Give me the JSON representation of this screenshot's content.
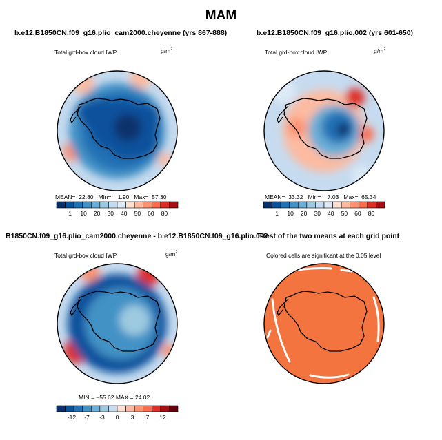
{
  "main_title": "MAM",
  "panels": [
    {
      "title": "b.e12.B1850CN.f09_g16.plio_cam2000.cheyenne (yrs 867-888)",
      "subtitle": "Total grd-box cloud IWP",
      "unit": "g/m",
      "unit_exp": "2",
      "stats": {
        "mean_label": "MEAN=",
        "mean": "22.80",
        "min_label": "Min=",
        "min": "1.90",
        "max_label": "Max=",
        "max": "57.30"
      },
      "colorbar_labels": [
        "1",
        "10",
        "20",
        "30",
        "40",
        "50",
        "60",
        "80"
      ]
    },
    {
      "title": "b.e12.B1850CN.f09_g16.plio.002 (yrs 601-650)",
      "subtitle": "Total grd-box cloud IWP",
      "unit": "g/m",
      "unit_exp": "2",
      "stats": {
        "mean_label": "MEAN=",
        "mean": "33.32",
        "min_label": "Min=",
        "min": "7.03",
        "max_label": "Max=",
        "max": "65.34"
      },
      "colorbar_labels": [
        "1",
        "10",
        "20",
        "30",
        "40",
        "50",
        "60",
        "80"
      ]
    },
    {
      "title": "B1850CN.f09_g16.plio_cam2000.cheyenne - b.e12.B1850CN.f09_g16.plio.002",
      "subtitle": "Total grd-box cloud IWP",
      "unit": "g/m",
      "unit_exp": "2",
      "stats_text": "MIN = −55.62   MAX =  24.02",
      "colorbar_labels": [
        "-12",
        "-7",
        "-3",
        "0",
        "3",
        "7",
        "12"
      ]
    },
    {
      "title": "T-test of the two means at each grid point",
      "subtitle": "Colored cells are significant at the 0.05 level"
    }
  ],
  "colors": {
    "seq": [
      "#08306b",
      "#08519c",
      "#2171b5",
      "#4292c6",
      "#6baed6",
      "#9ecae1",
      "#c6dbef",
      "#deebf7",
      "#fee0d2",
      "#fcbba1",
      "#fc9272",
      "#fb6a4a",
      "#de2d26",
      "#a50f15"
    ],
    "div": [
      "#08306b",
      "#08519c",
      "#2171b5",
      "#4292c6",
      "#6baed6",
      "#9ecae1",
      "#c6dbef",
      "#fee0d2",
      "#fcbba1",
      "#fc9272",
      "#fb6a4a",
      "#de2d26",
      "#a50f15",
      "#67000d"
    ],
    "ttest": "#f4743f",
    "continent": "#000000"
  },
  "chart_data": [
    {
      "type": "heatmap",
      "projection": "south-polar-stereographic",
      "title": "b.e12.B1850CN.f09_g16.plio_cam2000.cheyenne (yrs 867-888)",
      "variable": "Total grd-box cloud IWP",
      "units": "g/m2",
      "mean": 22.8,
      "min": 1.9,
      "max": 57.3,
      "colorbar_ticks": [
        1,
        10,
        20,
        30,
        40,
        50,
        60,
        80
      ]
    },
    {
      "type": "heatmap",
      "projection": "south-polar-stereographic",
      "title": "b.e12.B1850CN.f09_g16.plio.002 (yrs 601-650)",
      "variable": "Total grd-box cloud IWP",
      "units": "g/m2",
      "mean": 33.32,
      "min": 7.03,
      "max": 65.34,
      "colorbar_ticks": [
        1,
        10,
        20,
        30,
        40,
        50,
        60,
        80
      ]
    },
    {
      "type": "heatmap",
      "projection": "south-polar-stereographic",
      "title": "B1850CN.f09_g16.plio_cam2000.cheyenne - b.e12.B1850CN.f09_g16.plio.002",
      "variable": "Total grd-box cloud IWP",
      "units": "g/m2",
      "min": -55.62,
      "max": 24.02,
      "colorbar_ticks": [
        -12,
        -7,
        -3,
        0,
        3,
        7,
        12
      ]
    },
    {
      "type": "heatmap",
      "projection": "south-polar-stereographic",
      "title": "T-test of the two means at each grid point",
      "note": "Colored cells are significant at the 0.05 level"
    }
  ]
}
